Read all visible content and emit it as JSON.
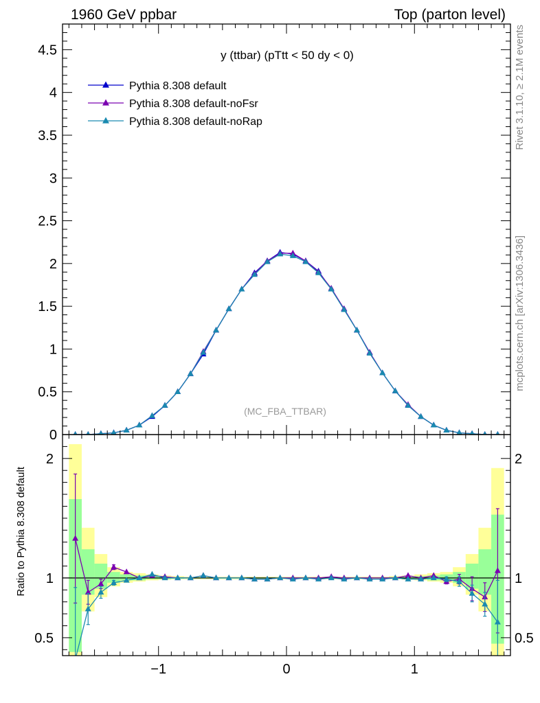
{
  "header": {
    "left": "1960 GeV ppbar",
    "right": "Top (parton level)"
  },
  "side_text": {
    "rivet": "Rivet 3.1.10, ≥ 2.1M events",
    "mcplots": "mcplots.cern.ch [arXiv:1306.3436]"
  },
  "colors": {
    "default": "#0000cc",
    "noFsr": "#7a00b0",
    "noRap": "#1a8ab0",
    "band_yellow": "#ffff99",
    "band_green": "#99ff99"
  },
  "chart_data": [
    {
      "type": "line",
      "title": "y (ttbar) (pTtt < 50 dy < 0)",
      "watermark": "(MC_FBA_TTBAR)",
      "xlabel": "",
      "ylabel": "",
      "xlim": [
        -1.75,
        1.75
      ],
      "ylim": [
        0,
        4.8
      ],
      "yticks": [
        "0",
        "0.5",
        "1",
        "1.5",
        "2",
        "2.5",
        "3",
        "3.5",
        "4",
        "4.5"
      ],
      "legend_position": "top-left",
      "x": [
        -1.65,
        -1.55,
        -1.45,
        -1.35,
        -1.25,
        -1.15,
        -1.05,
        -0.95,
        -0.85,
        -0.75,
        -0.65,
        -0.55,
        -0.45,
        -0.35,
        -0.25,
        -0.15,
        -0.05,
        0.05,
        0.15,
        0.25,
        0.35,
        0.45,
        0.55,
        0.65,
        0.75,
        0.85,
        0.95,
        1.05,
        1.15,
        1.25,
        1.35,
        1.45,
        1.55,
        1.65
      ],
      "series": [
        {
          "name": "Pythia 8.308 default",
          "values": [
            0.0,
            0.0,
            0.01,
            0.02,
            0.05,
            0.11,
            0.21,
            0.34,
            0.5,
            0.71,
            0.94,
            1.22,
            1.47,
            1.7,
            1.89,
            2.03,
            2.13,
            2.11,
            2.03,
            1.91,
            1.7,
            1.47,
            1.22,
            0.96,
            0.72,
            0.51,
            0.34,
            0.21,
            0.11,
            0.05,
            0.02,
            0.01,
            0.0,
            0.0
          ]
        },
        {
          "name": "Pythia 8.308 default-noFsr",
          "values": [
            0.0,
            0.0,
            0.01,
            0.02,
            0.05,
            0.11,
            0.22,
            0.34,
            0.5,
            0.71,
            0.97,
            1.22,
            1.47,
            1.7,
            1.88,
            2.03,
            2.12,
            2.12,
            2.03,
            1.9,
            1.71,
            1.47,
            1.22,
            0.96,
            0.72,
            0.51,
            0.35,
            0.21,
            0.11,
            0.05,
            0.02,
            0.01,
            0.0,
            0.0
          ]
        },
        {
          "name": "Pythia 8.308 default-noRap",
          "values": [
            0.0,
            0.0,
            0.01,
            0.02,
            0.05,
            0.11,
            0.22,
            0.34,
            0.5,
            0.71,
            0.96,
            1.22,
            1.47,
            1.7,
            1.87,
            2.02,
            2.11,
            2.09,
            2.02,
            1.89,
            1.7,
            1.46,
            1.22,
            0.95,
            0.72,
            0.51,
            0.34,
            0.21,
            0.11,
            0.05,
            0.02,
            0.01,
            0.0,
            0.0
          ]
        }
      ]
    },
    {
      "type": "line",
      "title": "",
      "xlabel": "",
      "ylabel": "Ratio to Pythia 8.308 default",
      "xlim": [
        -1.75,
        1.75
      ],
      "ylim": [
        0.35,
        2.2
      ],
      "xticks": [
        "−1",
        "0",
        "1"
      ],
      "yticks": [
        "0.5",
        "1",
        "2"
      ],
      "reference_value": 1.0,
      "x": [
        -1.65,
        -1.55,
        -1.45,
        -1.35,
        -1.25,
        -1.15,
        -1.05,
        -0.95,
        -0.85,
        -0.75,
        -0.65,
        -0.55,
        -0.45,
        -0.35,
        -0.25,
        -0.15,
        -0.05,
        0.05,
        0.15,
        0.25,
        0.35,
        0.45,
        0.55,
        0.65,
        0.75,
        0.85,
        0.95,
        1.05,
        1.15,
        1.25,
        1.35,
        1.45,
        1.55,
        1.65
      ],
      "band_yellow": [
        [
          0.35,
          2.12
        ],
        [
          0.72,
          1.42
        ],
        [
          0.84,
          1.2
        ],
        [
          0.93,
          1.09
        ],
        [
          0.96,
          1.05
        ],
        [
          0.97,
          1.04
        ],
        [
          0.98,
          1.03
        ],
        [
          0.985,
          1.02
        ],
        [
          0.99,
          1.015
        ],
        [
          0.99,
          1.01
        ],
        [
          0.99,
          1.01
        ],
        [
          0.99,
          1.01
        ],
        [
          0.99,
          1.01
        ],
        [
          0.99,
          1.01
        ],
        [
          0.99,
          1.01
        ],
        [
          0.99,
          1.01
        ],
        [
          0.99,
          1.01
        ],
        [
          0.99,
          1.01
        ],
        [
          0.99,
          1.01
        ],
        [
          0.99,
          1.01
        ],
        [
          0.99,
          1.01
        ],
        [
          0.99,
          1.01
        ],
        [
          0.99,
          1.01
        ],
        [
          0.99,
          1.01
        ],
        [
          0.99,
          1.01
        ],
        [
          0.99,
          1.015
        ],
        [
          0.985,
          1.02
        ],
        [
          0.98,
          1.03
        ],
        [
          0.97,
          1.04
        ],
        [
          0.96,
          1.05
        ],
        [
          0.93,
          1.09
        ],
        [
          0.86,
          1.2
        ],
        [
          0.72,
          1.42
        ],
        [
          0.35,
          1.92
        ]
      ],
      "band_green": [
        [
          0.38,
          1.66
        ],
        [
          0.86,
          1.24
        ],
        [
          0.91,
          1.12
        ],
        [
          0.96,
          1.05
        ],
        [
          0.98,
          1.03
        ],
        [
          0.98,
          1.02
        ],
        [
          0.99,
          1.015
        ],
        [
          0.99,
          1.01
        ],
        [
          0.993,
          1.007
        ],
        [
          0.995,
          1.005
        ],
        [
          0.995,
          1.005
        ],
        [
          0.995,
          1.005
        ],
        [
          0.995,
          1.005
        ],
        [
          0.995,
          1.005
        ],
        [
          0.995,
          1.005
        ],
        [
          0.995,
          1.005
        ],
        [
          0.995,
          1.005
        ],
        [
          0.995,
          1.005
        ],
        [
          0.995,
          1.005
        ],
        [
          0.995,
          1.005
        ],
        [
          0.995,
          1.005
        ],
        [
          0.995,
          1.005
        ],
        [
          0.995,
          1.005
        ],
        [
          0.995,
          1.005
        ],
        [
          0.995,
          1.005
        ],
        [
          0.993,
          1.007
        ],
        [
          0.99,
          1.01
        ],
        [
          0.99,
          1.015
        ],
        [
          0.98,
          1.02
        ],
        [
          0.98,
          1.03
        ],
        [
          0.96,
          1.05
        ],
        [
          0.91,
          1.12
        ],
        [
          0.86,
          1.24
        ],
        [
          0.45,
          1.53
        ]
      ],
      "series": [
        {
          "name": "Pythia 8.308 default-noFsr",
          "values": [
            1.33,
            0.88,
            0.95,
            1.09,
            1.05,
            1.0,
            1.02,
            1.01,
            1.0,
            1.0,
            1.02,
            1.0,
            1.0,
            1.0,
            0.99,
            0.99,
            1.0,
            1.0,
            1.0,
            1.0,
            1.01,
            1.0,
            1.0,
            1.0,
            1.0,
            1.0,
            1.02,
            1.0,
            1.02,
            0.97,
            0.99,
            0.91,
            0.84,
            1.06
          ],
          "errors": [
            0.54,
            0.1,
            0.04,
            0.02,
            0.01,
            0.01,
            0.005,
            0.005,
            0.004,
            0.003,
            0.003,
            0.003,
            0.003,
            0.003,
            0.003,
            0.003,
            0.003,
            0.003,
            0.003,
            0.003,
            0.003,
            0.003,
            0.003,
            0.003,
            0.004,
            0.005,
            0.005,
            0.01,
            0.01,
            0.02,
            0.04,
            0.1,
            0.12,
            0.52
          ]
        },
        {
          "name": "Pythia 8.308 default-noRap",
          "values": [
            0.32,
            0.74,
            0.88,
            0.96,
            0.98,
            1.0,
            1.03,
            1.0,
            1.0,
            1.0,
            1.02,
            1.0,
            1.0,
            1.0,
            0.99,
            0.99,
            1.0,
            0.99,
            1.0,
            0.99,
            1.0,
            0.99,
            1.0,
            0.99,
            0.99,
            1.0,
            0.99,
            0.99,
            1.0,
            0.99,
            0.97,
            0.87,
            0.78,
            0.63
          ],
          "errors": [
            0.6,
            0.13,
            0.05,
            0.02,
            0.01,
            0.01,
            0.005,
            0.005,
            0.004,
            0.003,
            0.003,
            0.003,
            0.003,
            0.003,
            0.003,
            0.003,
            0.003,
            0.003,
            0.003,
            0.003,
            0.003,
            0.003,
            0.003,
            0.003,
            0.004,
            0.005,
            0.005,
            0.01,
            0.01,
            0.02,
            0.04,
            0.07,
            0.1,
            0.35
          ]
        }
      ]
    }
  ]
}
